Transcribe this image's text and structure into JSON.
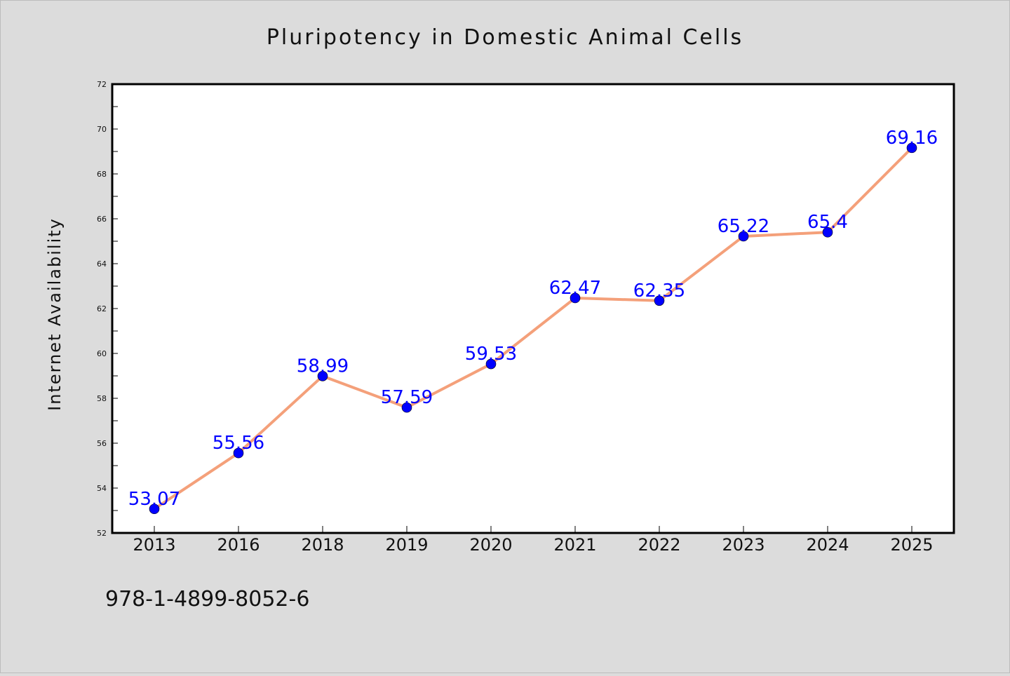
{
  "chart_data": {
    "type": "line",
    "title": "Pluripotency in Domestic Animal Cells",
    "xlabel": "",
    "ylabel": "Internet Availability",
    "categories": [
      "2013",
      "2016",
      "2018",
      "2019",
      "2020",
      "2021",
      "2022",
      "2023",
      "2024",
      "2025"
    ],
    "series": [
      {
        "values": [
          53.07,
          55.56,
          58.99,
          57.59,
          59.53,
          62.47,
          62.35,
          65.22,
          65.4,
          69.16
        ],
        "color": "#f4a07a",
        "marker_color": "#0000ff"
      }
    ],
    "data_labels": [
      "53.07",
      "55.56",
      "58.99",
      "57.59",
      "59.53",
      "62.47",
      "62.35",
      "65.22",
      "65.4",
      "69.16"
    ],
    "ylim": [
      52,
      72
    ],
    "yticks": [
      "52",
      "54",
      "56",
      "58",
      "60",
      "62",
      "64",
      "66",
      "68",
      "70",
      "72"
    ],
    "grid": false,
    "legend": "none",
    "label_color": "#0000ff",
    "background": "#dcdcdc",
    "plot_background": "#ffffff"
  },
  "footer_text": "978-1-4899-8052-6"
}
